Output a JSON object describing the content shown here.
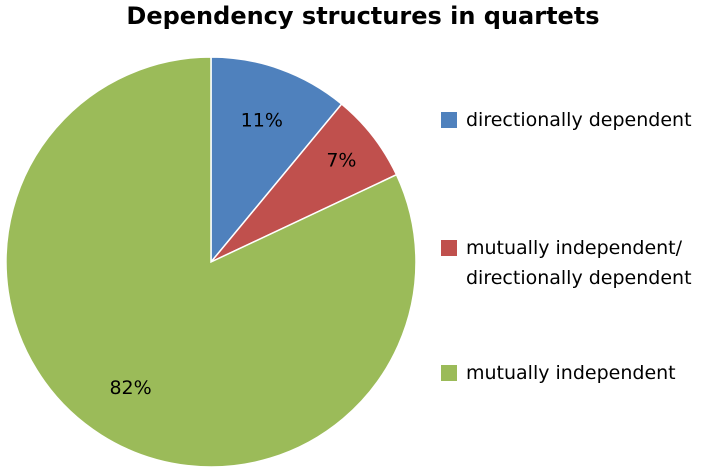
{
  "chart_data": {
    "type": "pie",
    "title": "Dependency structures in quartets",
    "slices": [
      {
        "label": "directionally dependent",
        "value": 11,
        "display": "11%",
        "color": "#4F81BD"
      },
      {
        "label": "mutually independent/\ndirectionally dependent",
        "value": 7,
        "display": "7%",
        "color": "#C0504D"
      },
      {
        "label": "mutually independent",
        "value": 82,
        "display": "82%",
        "color": "#9BBB59"
      }
    ],
    "legend_position": "right"
  }
}
